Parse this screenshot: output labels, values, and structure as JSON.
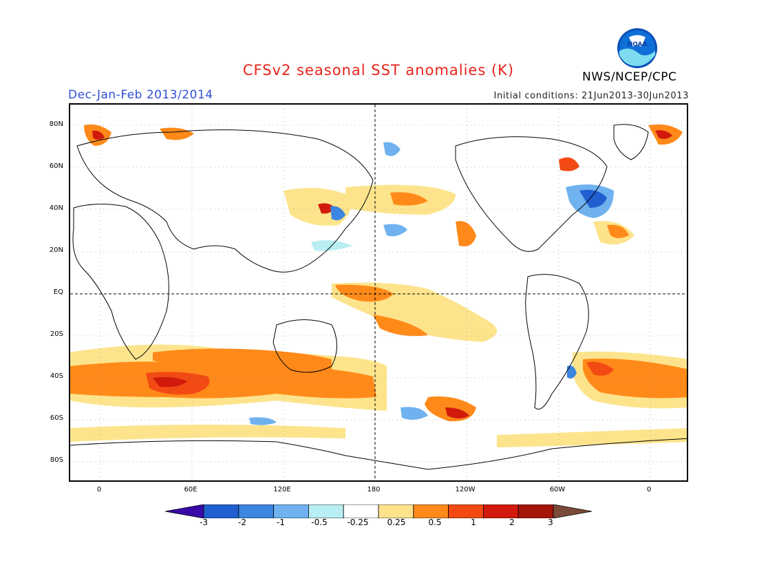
{
  "header": {
    "title": "CFSv2 seasonal SST anomalies (K)",
    "season": "Dec-Jan-Feb 2013/2014",
    "initial_conditions": "Initial conditions: 21Jun2013-30Jun2013",
    "organization": "NWS/NCEP/CPC",
    "logo_text": "NOAA"
  },
  "map": {
    "projection": "cylindrical equidistant",
    "central_longitude": "180",
    "lat_labels": [
      "80N",
      "60N",
      "40N",
      "20N",
      "EQ",
      "20S",
      "40S",
      "60S",
      "80S"
    ],
    "lon_labels": [
      "0",
      "60E",
      "120E",
      "180",
      "120W",
      "60W",
      "0"
    ],
    "reference_lines": [
      "equator",
      "dateline"
    ]
  },
  "colorbar": {
    "labels": [
      "-3",
      "-2",
      "-1",
      "-0.5",
      "-0.25",
      "0.25",
      "0.5",
      "1",
      "2",
      "3"
    ],
    "colors": [
      "#3a0aa8",
      "#1f5fcf",
      "#3b86e0",
      "#6fb2ef",
      "#b9eef3",
      "#ffffff",
      "#fde48c",
      "#ff8a1a",
      "#f24a12",
      "#d11a0c",
      "#a5150a",
      "#7a4a38"
    ]
  },
  "colors": {
    "title": "#e8231a",
    "season": "#2f4fd6",
    "gridline": "#000000"
  }
}
